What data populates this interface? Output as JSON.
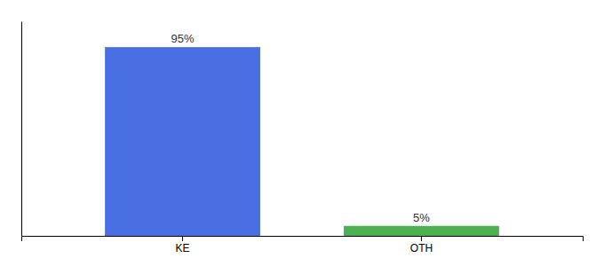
{
  "chart_data": {
    "type": "bar",
    "categories": [
      "KE",
      "OTH"
    ],
    "values": [
      95,
      5
    ],
    "value_labels": [
      "95%",
      "5%"
    ],
    "colors": [
      "#4A6FE3",
      "#4CAF50"
    ],
    "ylim": [
      0,
      108
    ],
    "data_labels": true,
    "tick_labels": "x"
  }
}
